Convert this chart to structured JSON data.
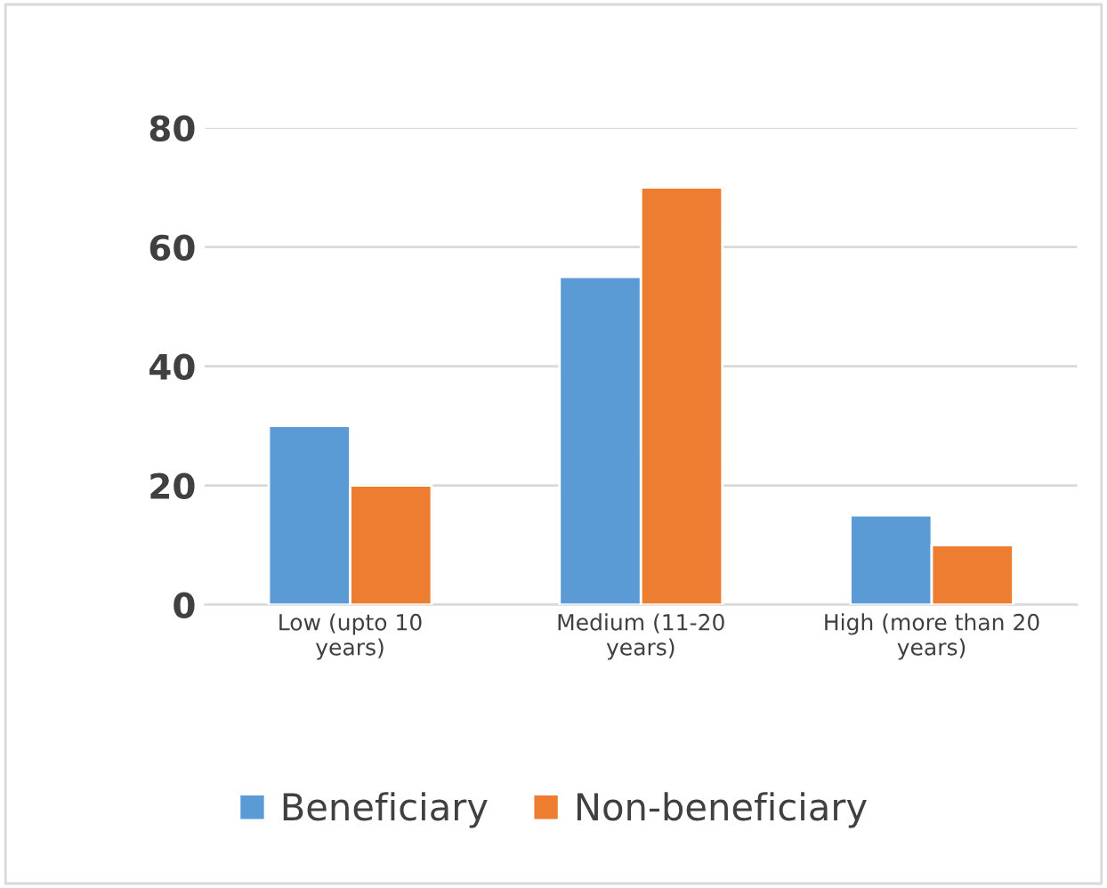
{
  "chart_data": {
    "type": "bar",
    "categories": [
      "Low (upto 10\nyears)",
      "Medium (11-20\nyears)",
      "High (more than 20\nyears)"
    ],
    "series": [
      {
        "name": "Beneficiary",
        "color": "#5b9bd5",
        "values": [
          30,
          55,
          15
        ]
      },
      {
        "name": "Non-beneficiary",
        "color": "#ed7d31",
        "values": [
          20,
          70,
          10
        ]
      }
    ],
    "ylim": [
      0,
      80
    ],
    "yticks": [
      0,
      20,
      40,
      60,
      80
    ],
    "grid": "y",
    "legend": "bottom"
  }
}
